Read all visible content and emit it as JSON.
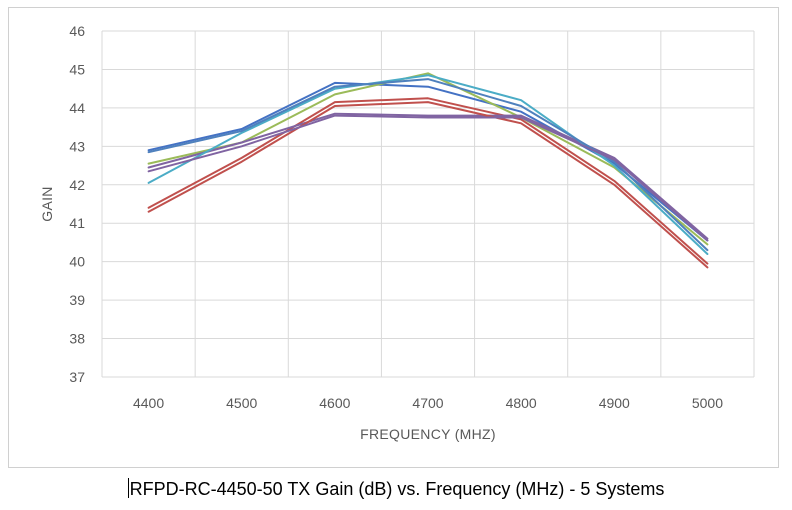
{
  "caption": "RFPD-RC-4450-50 TX Gain (dB) vs. Frequency (MHz) - 5 Systems",
  "chart_data": {
    "type": "line",
    "title": "",
    "xlabel": "FREQUENCY (MHZ)",
    "ylabel": "GAIN",
    "categories": [
      "4400",
      "4500",
      "4600",
      "4700",
      "4800",
      "4900",
      "5000"
    ],
    "ylim": [
      37,
      46
    ],
    "yticks": [
      "37",
      "38",
      "39",
      "40",
      "41",
      "42",
      "43",
      "44",
      "45",
      "46"
    ],
    "grid": true,
    "legend": "none",
    "series": [
      {
        "color": "#4472c4",
        "values": [
          42.9,
          43.45,
          44.65,
          44.55,
          43.9,
          42.55,
          40.55
        ]
      },
      {
        "color": "#c0504d",
        "values": [
          41.4,
          42.7,
          44.15,
          44.25,
          43.7,
          42.1,
          39.95
        ]
      },
      {
        "color": "#9bbb59",
        "values": [
          42.55,
          43.1,
          44.35,
          44.9,
          43.75,
          42.45,
          40.45
        ]
      },
      {
        "color": "#8064a2",
        "values": [
          42.45,
          43.1,
          43.85,
          43.8,
          43.8,
          42.7,
          40.6
        ]
      },
      {
        "color": "#4bacc6",
        "values": [
          42.05,
          43.35,
          44.5,
          44.85,
          44.2,
          42.5,
          40.2
        ]
      },
      {
        "color": "#4f81bd",
        "values": [
          42.85,
          43.4,
          44.55,
          44.75,
          44.05,
          42.6,
          40.3
        ]
      },
      {
        "color": "#c0504d",
        "values": [
          41.3,
          42.6,
          44.05,
          44.15,
          43.6,
          42.0,
          39.85
        ]
      },
      {
        "color": "#8064a2",
        "values": [
          42.35,
          43.0,
          43.8,
          43.75,
          43.75,
          42.65,
          40.55
        ]
      }
    ]
  }
}
